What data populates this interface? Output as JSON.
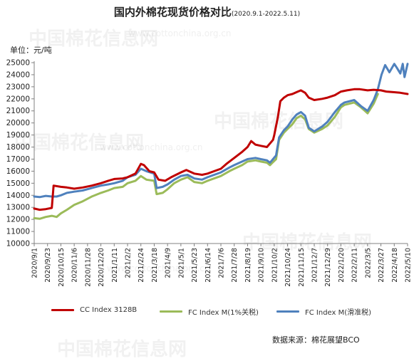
{
  "chart_data": {
    "type": "line",
    "title": "国内外棉花现货价格对比",
    "subtitle": "(2020.9.1-2022.5.11)",
    "ylabel": "单位：元/吨",
    "ylim": [
      10000,
      25000
    ],
    "yticks": [
      10000,
      11000,
      12000,
      13000,
      14000,
      15000,
      16000,
      17000,
      18000,
      19000,
      20000,
      21000,
      22000,
      23000,
      24000,
      25000
    ],
    "xlabels": [
      "2020/9/1",
      "2020/9/23",
      "2020/10/15",
      "2020/11/6",
      "2020/11/28",
      "2020/12/20",
      "2021/1/11",
      "2021/2/2",
      "2021/2/24",
      "2021/3/18",
      "2021/4/9",
      "2021/5/1",
      "2021/5/23",
      "2021/6/14",
      "2021/7/6",
      "2021/7/28",
      "2021/8/19",
      "2021/9/10",
      "2021/10/2",
      "2021/10/24",
      "2021/11/15",
      "2021/12/7",
      "2021/12/29",
      "2022/1/20",
      "2022/2/11",
      "2022/3/5",
      "2022/3/27",
      "2022/4/18",
      "2022/5/10"
    ],
    "grid": false,
    "legend_position": "bottom",
    "series": [
      {
        "name": "CC Index 3128B",
        "color": "#c00000",
        "points": [
          [
            "2020/9/1",
            12900
          ],
          [
            "2020/9/10",
            12800
          ],
          [
            "2020/9/20",
            12850
          ],
          [
            "2020/9/30",
            12950
          ],
          [
            "2020/10/3",
            14800
          ],
          [
            "2020/10/15",
            14700
          ],
          [
            "2020/10/25",
            14650
          ],
          [
            "2020/11/6",
            14550
          ],
          [
            "2020/11/20",
            14650
          ],
          [
            "2020/12/5",
            14800
          ],
          [
            "2020/12/20",
            15000
          ],
          [
            "2021/1/1",
            15200
          ],
          [
            "2021/1/11",
            15350
          ],
          [
            "2021/1/25",
            15400
          ],
          [
            "2021/2/2",
            15500
          ],
          [
            "2021/2/15",
            15800
          ],
          [
            "2021/2/24",
            16600
          ],
          [
            "2021/3/1",
            16500
          ],
          [
            "2021/3/10",
            16000
          ],
          [
            "2021/3/18",
            15900
          ],
          [
            "2021/3/25",
            15300
          ],
          [
            "2021/4/5",
            15200
          ],
          [
            "2021/4/15",
            15500
          ],
          [
            "2021/5/1",
            15900
          ],
          [
            "2021/5/10",
            16100
          ],
          [
            "2021/5/23",
            15800
          ],
          [
            "2021/6/5",
            15700
          ],
          [
            "2021/6/14",
            15800
          ],
          [
            "2021/6/25",
            16000
          ],
          [
            "2021/7/6",
            16200
          ],
          [
            "2021/7/15",
            16600
          ],
          [
            "2021/7/28",
            17100
          ],
          [
            "2021/8/10",
            17600
          ],
          [
            "2021/8/19",
            18000
          ],
          [
            "2021/8/25",
            18500
          ],
          [
            "2021/9/1",
            18200
          ],
          [
            "2021/9/10",
            18100
          ],
          [
            "2021/9/20",
            18000
          ],
          [
            "2021/9/30",
            18600
          ],
          [
            "2021/10/2",
            19000
          ],
          [
            "2021/10/8",
            20500
          ],
          [
            "2021/10/12",
            21800
          ],
          [
            "2021/10/18",
            22100
          ],
          [
            "2021/10/24",
            22300
          ],
          [
            "2021/11/1",
            22400
          ],
          [
            "2021/11/10",
            22600
          ],
          [
            "2021/11/15",
            22700
          ],
          [
            "2021/11/22",
            22500
          ],
          [
            "2021/11/28",
            22100
          ],
          [
            "2021/12/7",
            21900
          ],
          [
            "2021/12/20",
            22000
          ],
          [
            "2021/12/29",
            22100
          ],
          [
            "2022/1/10",
            22300
          ],
          [
            "2022/1/20",
            22600
          ],
          [
            "2022/1/30",
            22700
          ],
          [
            "2022/2/11",
            22800
          ],
          [
            "2022/2/20",
            22800
          ],
          [
            "2022/3/5",
            22700
          ],
          [
            "2022/3/15",
            22750
          ],
          [
            "2022/3/27",
            22700
          ],
          [
            "2022/4/5",
            22600
          ],
          [
            "2022/4/18",
            22550
          ],
          [
            "2022/4/28",
            22500
          ],
          [
            "2022/5/10",
            22400
          ]
        ]
      },
      {
        "name": "FC Index M(1%关税)",
        "color": "#9bbb59",
        "points": [
          [
            "2020/9/1",
            12100
          ],
          [
            "2020/9/10",
            12050
          ],
          [
            "2020/9/20",
            12200
          ],
          [
            "2020/9/30",
            12300
          ],
          [
            "2020/10/8",
            12200
          ],
          [
            "2020/10/15",
            12500
          ],
          [
            "2020/10/25",
            12800
          ],
          [
            "2020/11/6",
            13200
          ],
          [
            "2020/11/20",
            13500
          ],
          [
            "2020/12/5",
            13900
          ],
          [
            "2020/12/20",
            14200
          ],
          [
            "2021/1/1",
            14400
          ],
          [
            "2021/1/11",
            14600
          ],
          [
            "2021/1/25",
            14700
          ],
          [
            "2021/2/2",
            15000
          ],
          [
            "2021/2/15",
            15200
          ],
          [
            "2021/2/24",
            15600
          ],
          [
            "2021/3/5",
            15300
          ],
          [
            "2021/3/18",
            15200
          ],
          [
            "2021/3/22",
            14100
          ],
          [
            "2021/4/1",
            14200
          ],
          [
            "2021/4/9",
            14500
          ],
          [
            "2021/4/20",
            15000
          ],
          [
            "2021/5/1",
            15300
          ],
          [
            "2021/5/12",
            15500
          ],
          [
            "2021/5/23",
            15100
          ],
          [
            "2021/6/5",
            15000
          ],
          [
            "2021/6/14",
            15200
          ],
          [
            "2021/6/25",
            15400
          ],
          [
            "2021/7/6",
            15600
          ],
          [
            "2021/7/20",
            16000
          ],
          [
            "2021/7/28",
            16200
          ],
          [
            "2021/8/10",
            16500
          ],
          [
            "2021/8/19",
            16800
          ],
          [
            "2021/9/1",
            16900
          ],
          [
            "2021/9/10",
            16800
          ],
          [
            "2021/9/20",
            16700
          ],
          [
            "2021/9/25",
            16500
          ],
          [
            "2021/10/5",
            17000
          ],
          [
            "2021/10/10",
            18600
          ],
          [
            "2021/10/18",
            19200
          ],
          [
            "2021/10/24",
            19500
          ],
          [
            "2021/11/1",
            19900
          ],
          [
            "2021/11/8",
            20400
          ],
          [
            "2021/11/15",
            20600
          ],
          [
            "2021/11/22",
            20300
          ],
          [
            "2021/11/28",
            19500
          ],
          [
            "2021/12/7",
            19200
          ],
          [
            "2021/12/20",
            19500
          ],
          [
            "2021/12/29",
            19800
          ],
          [
            "2022/1/10",
            20500
          ],
          [
            "2022/1/20",
            21300
          ],
          [
            "2022/1/26",
            21500
          ],
          [
            "2022/2/11",
            21700
          ],
          [
            "2022/2/22",
            21300
          ],
          [
            "2022/3/5",
            20800
          ],
          [
            "2022/3/15",
            21600
          ],
          [
            "2022/3/22",
            22400
          ]
        ]
      },
      {
        "name": "FC Index M(滑准税)",
        "color": "#4f81bd",
        "points": [
          [
            "2020/9/1",
            13900
          ],
          [
            "2020/9/10",
            13850
          ],
          [
            "2020/9/20",
            13950
          ],
          [
            "2020/9/30",
            13900
          ],
          [
            "2020/10/8",
            13900
          ],
          [
            "2020/10/15",
            14000
          ],
          [
            "2020/10/25",
            14200
          ],
          [
            "2020/11/6",
            14300
          ],
          [
            "2020/11/20",
            14400
          ],
          [
            "2020/12/5",
            14600
          ],
          [
            "2020/12/20",
            14800
          ],
          [
            "2021/1/1",
            14900
          ],
          [
            "2021/1/11",
            15000
          ],
          [
            "2021/1/25",
            15200
          ],
          [
            "2021/2/2",
            15500
          ],
          [
            "2021/2/15",
            15700
          ],
          [
            "2021/2/24",
            16200
          ],
          [
            "2021/3/5",
            16000
          ],
          [
            "2021/3/18",
            15800
          ],
          [
            "2021/3/22",
            14600
          ],
          [
            "2021/4/1",
            14700
          ],
          [
            "2021/4/9",
            14900
          ],
          [
            "2021/4/20",
            15300
          ],
          [
            "2021/5/1",
            15600
          ],
          [
            "2021/5/12",
            15700
          ],
          [
            "2021/5/23",
            15400
          ],
          [
            "2021/6/5",
            15300
          ],
          [
            "2021/6/14",
            15500
          ],
          [
            "2021/6/25",
            15700
          ],
          [
            "2021/7/6",
            15900
          ],
          [
            "2021/7/20",
            16300
          ],
          [
            "2021/7/28",
            16500
          ],
          [
            "2021/8/10",
            16800
          ],
          [
            "2021/8/19",
            17000
          ],
          [
            "2021/9/1",
            17100
          ],
          [
            "2021/9/10",
            17000
          ],
          [
            "2021/9/20",
            16900
          ],
          [
            "2021/9/25",
            16700
          ],
          [
            "2021/10/5",
            17300
          ],
          [
            "2021/10/10",
            18800
          ],
          [
            "2021/10/18",
            19400
          ],
          [
            "2021/10/24",
            19700
          ],
          [
            "2021/11/1",
            20300
          ],
          [
            "2021/11/8",
            20700
          ],
          [
            "2021/11/15",
            20900
          ],
          [
            "2021/11/22",
            20600
          ],
          [
            "2021/11/28",
            19600
          ],
          [
            "2021/12/7",
            19300
          ],
          [
            "2021/12/20",
            19700
          ],
          [
            "2021/12/29",
            20100
          ],
          [
            "2022/1/10",
            20900
          ],
          [
            "2022/1/20",
            21500
          ],
          [
            "2022/1/26",
            21700
          ],
          [
            "2022/2/11",
            21900
          ],
          [
            "2022/2/22",
            21400
          ],
          [
            "2022/3/5",
            21000
          ],
          [
            "2022/3/15",
            21900
          ],
          [
            "2022/3/22",
            22800
          ],
          [
            "2022/3/28",
            24000
          ],
          [
            "2022/4/3",
            24800
          ],
          [
            "2022/4/10",
            24200
          ],
          [
            "2022/4/18",
            24900
          ],
          [
            "2022/4/22",
            24600
          ],
          [
            "2022/4/28",
            24100
          ],
          [
            "2022/5/2",
            24900
          ],
          [
            "2022/5/5",
            23800
          ],
          [
            "2022/5/10",
            24900
          ]
        ]
      }
    ]
  },
  "source": "数据来源：棉花展望BCO",
  "watermark": {
    "cn": "中国棉花信息网",
    "en": "www.cottonchina.org.cn"
  }
}
